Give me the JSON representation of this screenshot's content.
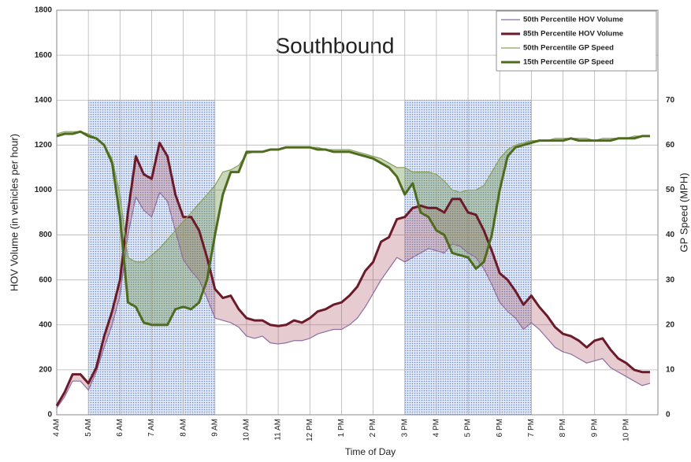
{
  "chart_data": {
    "type": "line",
    "title": "Southbound",
    "x_label": "Time of Day",
    "y_label": "HOV Volume (in vehicles per hour)",
    "y2_label": "GP Speed (MPH)",
    "x": [
      4,
      4.25,
      4.5,
      4.75,
      5,
      5.25,
      5.5,
      5.75,
      6,
      6.25,
      6.5,
      6.75,
      7,
      7.25,
      7.5,
      7.75,
      8,
      8.25,
      8.5,
      8.75,
      9,
      9.25,
      9.5,
      9.75,
      10,
      10.25,
      10.5,
      10.75,
      11,
      11.25,
      11.5,
      11.75,
      12,
      12.25,
      12.5,
      12.75,
      13,
      13.25,
      13.5,
      13.75,
      14,
      14.25,
      14.5,
      14.75,
      15,
      15.25,
      15.5,
      15.75,
      16,
      16.25,
      16.5,
      16.75,
      17,
      17.25,
      17.5,
      17.75,
      18,
      18.25,
      18.5,
      18.75,
      19,
      19.25,
      19.5,
      19.75,
      20,
      20.25,
      20.5,
      20.75,
      21,
      21.25,
      21.5,
      21.75,
      22,
      22.25,
      22.5,
      22.75
    ],
    "xlim": [
      4,
      23
    ],
    "xticks": [
      {
        "value": 4,
        "label": "4 AM"
      },
      {
        "value": 5,
        "label": "5 AM"
      },
      {
        "value": 6,
        "label": "6 AM"
      },
      {
        "value": 7,
        "label": "7 AM"
      },
      {
        "value": 8,
        "label": "8 AM"
      },
      {
        "value": 9,
        "label": "9 AM"
      },
      {
        "value": 10,
        "label": "10 AM"
      },
      {
        "value": 11,
        "label": "11 AM"
      },
      {
        "value": 12,
        "label": "12 PM"
      },
      {
        "value": 13,
        "label": "1 PM"
      },
      {
        "value": 14,
        "label": "2 PM"
      },
      {
        "value": 15,
        "label": "3 PM"
      },
      {
        "value": 16,
        "label": "4 PM"
      },
      {
        "value": 17,
        "label": "5 PM"
      },
      {
        "value": 18,
        "label": "6 PM"
      },
      {
        "value": 19,
        "label": "7 PM"
      },
      {
        "value": 20,
        "label": "8 PM"
      },
      {
        "value": 21,
        "label": "9 PM"
      },
      {
        "value": 22,
        "label": "10 PM"
      }
    ],
    "ylim": [
      0,
      1800
    ],
    "yticks": [
      0,
      200,
      400,
      600,
      800,
      1000,
      1200,
      1400,
      1600,
      1800
    ],
    "y2lim": [
      0,
      90
    ],
    "y2ticks": [
      0,
      10,
      20,
      30,
      40,
      50,
      60,
      70
    ],
    "grid": true,
    "legend": "top-right",
    "shaded_periods": [
      {
        "x": [
          5,
          9
        ],
        "top": 1400,
        "color": "#5b7fc4"
      },
      {
        "x": [
          15,
          19
        ],
        "top": 1400,
        "color": "#5b7fc4"
      }
    ],
    "band_fills": [
      {
        "between": [
          0,
          1
        ],
        "color": "rgba(165,70,85,0.28)"
      },
      {
        "between": [
          2,
          3
        ],
        "color": "rgba(100,140,60,0.35)"
      }
    ],
    "series": [
      {
        "name": "50th Percentile HOV Volume",
        "color": "#8e6d9e",
        "line_width": 1.2,
        "values": [
          30,
          80,
          150,
          150,
          110,
          190,
          300,
          400,
          530,
          800,
          970,
          910,
          880,
          990,
          950,
          820,
          690,
          640,
          600,
          520,
          430,
          420,
          410,
          390,
          350,
          340,
          350,
          320,
          315,
          320,
          330,
          330,
          340,
          360,
          370,
          380,
          380,
          400,
          430,
          480,
          540,
          600,
          650,
          700,
          680,
          700,
          720,
          740,
          730,
          720,
          760,
          750,
          720,
          700,
          650,
          580,
          500,
          460,
          430,
          380,
          410,
          380,
          340,
          300,
          280,
          270,
          250,
          230,
          240,
          250,
          210,
          190,
          170,
          150,
          130,
          140
        ]
      },
      {
        "name": "85th Percentile HOV Volume",
        "color": "#6b1a2a",
        "line_width": 3,
        "values": [
          40,
          100,
          180,
          180,
          140,
          210,
          350,
          460,
          600,
          900,
          1150,
          1070,
          1050,
          1210,
          1150,
          980,
          880,
          880,
          820,
          700,
          560,
          520,
          530,
          470,
          430,
          420,
          420,
          400,
          395,
          400,
          420,
          410,
          430,
          460,
          470,
          490,
          500,
          530,
          570,
          640,
          680,
          770,
          790,
          870,
          880,
          920,
          930,
          920,
          920,
          900,
          960,
          960,
          900,
          890,
          820,
          730,
          630,
          600,
          550,
          490,
          530,
          480,
          440,
          390,
          360,
          350,
          330,
          300,
          330,
          340,
          290,
          250,
          230,
          200,
          190,
          190
        ]
      },
      {
        "name": "50th Percentile GP Speed",
        "color": "#8aa05a",
        "line_width": 1.2,
        "axis": "y2",
        "values": [
          62.5,
          63,
          63,
          63,
          62.5,
          61.5,
          60,
          57,
          49,
          35,
          34,
          34,
          35.5,
          37,
          39,
          41,
          43,
          45,
          47,
          49,
          51,
          54,
          54.5,
          55.5,
          58,
          58.5,
          58.5,
          59,
          59,
          59.5,
          59.5,
          59.5,
          59.5,
          59.5,
          59,
          59,
          59,
          59,
          58.5,
          58,
          57.5,
          57,
          56,
          55,
          55,
          54,
          54,
          54,
          53.5,
          52,
          50,
          49.5,
          50,
          50,
          51,
          54,
          57,
          59,
          60,
          60.5,
          61,
          61,
          61,
          61.5,
          61.5,
          61.5,
          61.5,
          61.5,
          61,
          61.5,
          61.5,
          61.5,
          61.5,
          62,
          62,
          62
        ]
      },
      {
        "name": "15th Percentile GP Speed",
        "color": "#4e6b1e",
        "line_width": 3,
        "axis": "y2",
        "values": [
          62,
          62.5,
          62.5,
          63,
          62,
          61.5,
          60,
          56,
          44,
          25,
          24,
          20.5,
          20,
          20,
          20,
          23.5,
          24,
          23.5,
          25,
          30,
          40,
          49,
          54,
          54,
          58.5,
          58.5,
          58.5,
          59,
          59,
          59.5,
          59.5,
          59.5,
          59.5,
          59,
          59,
          58.5,
          58.5,
          58.5,
          58,
          57.5,
          57,
          56,
          55,
          53,
          49,
          51.5,
          45,
          44,
          41,
          40,
          36,
          35.5,
          35,
          32.5,
          34,
          40,
          50,
          57.5,
          59.5,
          60,
          60.5,
          61,
          61,
          61,
          61,
          61.5,
          61,
          61,
          61,
          61,
          61,
          61.5,
          61.5,
          61.5,
          62,
          62
        ]
      }
    ]
  }
}
